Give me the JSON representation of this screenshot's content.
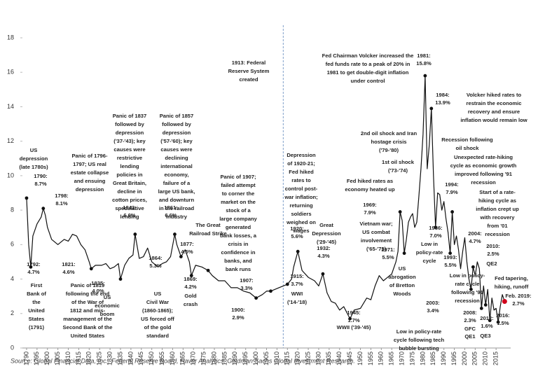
{
  "chart_data": {
    "type": "line",
    "color": "#111111",
    "point_color": "#111111",
    "xlim": [
      1788,
      2022
    ],
    "ylim": [
      0,
      18
    ],
    "xticks": [
      1790,
      1795,
      1800,
      1805,
      1810,
      1815,
      1820,
      1825,
      1830,
      1835,
      1840,
      1845,
      1850,
      1855,
      1860,
      1865,
      1870,
      1875,
      1880,
      1885,
      1890,
      1895,
      1900,
      1905,
      1910,
      1915,
      1920,
      1925,
      1930,
      1935,
      1940,
      1945,
      1950,
      1955,
      1960,
      1965,
      1970,
      1975,
      1980,
      1985,
      1990,
      1995,
      2000,
      2005,
      2010,
      2015
    ],
    "yticks": [
      0,
      2,
      4,
      6,
      8,
      10,
      12,
      14,
      16,
      18
    ],
    "vline": 1913,
    "vline_color": "#7f9fc9",
    "x": [
      1790,
      1791,
      1792,
      1793,
      1795,
      1797,
      1798,
      1799,
      1800,
      1802,
      1805,
      1808,
      1810,
      1812,
      1814,
      1816,
      1818,
      1820,
      1821,
      1823,
      1826,
      1828,
      1830,
      1832,
      1834,
      1835,
      1837,
      1839,
      1841,
      1842,
      1844,
      1846,
      1848,
      1850,
      1853,
      1855,
      1857,
      1859,
      1861,
      1862,
      1864,
      1866,
      1868,
      1869,
      1871,
      1874,
      1877,
      1879,
      1882,
      1885,
      1888,
      1891,
      1894,
      1897,
      1900,
      1903,
      1905,
      1907,
      1909,
      1911,
      1913,
      1915,
      1917,
      1918,
      1920,
      1922,
      1925,
      1928,
      1930,
      1932,
      1934,
      1936,
      1938,
      1940,
      1942,
      1945,
      1947,
      1950,
      1953,
      1955,
      1957,
      1959,
      1961,
      1963,
      1965,
      1967,
      1968,
      1969,
      1970,
      1971,
      1972,
      1973,
      1974,
      1975,
      1976,
      1977,
      1978,
      1979,
      1980,
      1981,
      1982,
      1983,
      1984,
      1985,
      1986,
      1987,
      1988,
      1989,
      1990,
      1991,
      1992,
      1993,
      1994,
      1995,
      1996,
      1997,
      1998,
      1999,
      2000,
      2001,
      2002,
      2003,
      2004,
      2005,
      2006,
      2007,
      2008,
      2009,
      2010,
      2011,
      2012,
      2013,
      2014,
      2015,
      2016,
      2017,
      2018,
      2019.1
    ],
    "values": [
      8.7,
      6.0,
      4.7,
      6.5,
      7.2,
      7.6,
      8.1,
      7.7,
      7.0,
      6.3,
      6.0,
      6.3,
      6.2,
      6.6,
      6.5,
      6.0,
      5.7,
      5.0,
      4.6,
      4.8,
      4.8,
      4.9,
      4.6,
      4.7,
      4.9,
      4.0,
      4.8,
      5.2,
      5.4,
      6.6,
      5.2,
      5.3,
      5.8,
      5.0,
      4.7,
      4.9,
      5.0,
      5.3,
      6.6,
      6.0,
      5.3,
      5.7,
      5.0,
      4.2,
      4.8,
      4.7,
      4.5,
      4.2,
      3.9,
      3.9,
      3.5,
      3.5,
      3.3,
      3.2,
      2.9,
      3.1,
      3.3,
      3.3,
      3.4,
      3.5,
      3.6,
      3.7,
      4.0,
      4.7,
      5.6,
      4.5,
      4.1,
      3.9,
      3.6,
      4.3,
      3.2,
      2.7,
      2.6,
      2.2,
      2.4,
      1.7,
      2.2,
      2.3,
      2.9,
      2.8,
      3.6,
      4.2,
      3.9,
      4.1,
      4.3,
      5.0,
      5.6,
      7.9,
      7.4,
      5.5,
      6.3,
      7.3,
      7.6,
      7.8,
      7.0,
      7.3,
      8.8,
      10.4,
      12.4,
      15.8,
      10.4,
      11.8,
      13.9,
      10.0,
      7.0,
      9.0,
      8.9,
      8.0,
      8.5,
      7.5,
      6.7,
      5.5,
      7.9,
      6.0,
      6.5,
      5.7,
      4.6,
      5.6,
      6.4,
      5.0,
      4.0,
      3.4,
      4.7,
      4.2,
      5.0,
      4.6,
      2.3,
      3.6,
      2.5,
      3.4,
      1.6,
      2.9,
      2.2,
      2.3,
      1.5,
      2.4,
      3.1,
      2.7
    ],
    "points": [
      {
        "x": 1790,
        "y": 8.7,
        "label": [
          "1790:",
          "8.7%"
        ]
      },
      {
        "x": 1792,
        "y": 4.7,
        "label": [
          "1792:",
          "4.7%"
        ]
      },
      {
        "x": 1798,
        "y": 8.1,
        "label": [
          "1798:",
          "8.1%"
        ]
      },
      {
        "x": 1821,
        "y": 4.6,
        "label": [
          "1821:",
          "4.6%"
        ]
      },
      {
        "x": 1835,
        "y": 4.0,
        "label": [
          "1835:",
          "4.0%"
        ]
      },
      {
        "x": 1842,
        "y": 6.6,
        "label": [
          "1842:",
          "6.6%"
        ]
      },
      {
        "x": 1861,
        "y": 6.6,
        "label": [
          "1861:",
          "6.6%"
        ]
      },
      {
        "x": 1864,
        "y": 5.3,
        "label": [
          "1864:",
          "5.3%"
        ]
      },
      {
        "x": 1869,
        "y": 4.2,
        "label": [
          "1869:",
          "4.2%"
        ]
      },
      {
        "x": 1877,
        "y": 4.5,
        "label": [
          "1877:",
          "4.5%"
        ]
      },
      {
        "x": 1900,
        "y": 2.9,
        "label": [
          "1900:",
          "2.9%"
        ]
      },
      {
        "x": 1907,
        "y": 3.3,
        "label": [
          "1907:",
          "3.3%"
        ]
      },
      {
        "x": 1915,
        "y": 3.7,
        "label": [
          "1915:",
          "3.7%"
        ]
      },
      {
        "x": 1920,
        "y": 5.6,
        "label": [
          "1920:",
          "5.6%"
        ]
      },
      {
        "x": 1932,
        "y": 4.3,
        "label": [
          "1932:",
          "4.3%"
        ]
      },
      {
        "x": 1945,
        "y": 1.7,
        "label": [
          "1945:",
          "1.7%"
        ]
      },
      {
        "x": 1969,
        "y": 7.9,
        "label": [
          "1969:",
          "7.9%"
        ]
      },
      {
        "x": 1971,
        "y": 5.5,
        "label": [
          "1971:",
          "5.5%"
        ]
      },
      {
        "x": 1981,
        "y": 15.8,
        "label": [
          "1981:",
          "15.8%"
        ]
      },
      {
        "x": 1984,
        "y": 13.9,
        "label": [
          "1984:",
          "13.9%"
        ]
      },
      {
        "x": 1986,
        "y": 7.0,
        "label": [
          "1986:",
          "7.0%"
        ]
      },
      {
        "x": 1993,
        "y": 5.5,
        "label": [
          "1993:",
          "5.5%"
        ]
      },
      {
        "x": 1994,
        "y": 7.9,
        "label": [
          "1994:",
          "7.9%"
        ]
      },
      {
        "x": 2003,
        "y": 3.4,
        "label": [
          "2003:",
          "3.4%"
        ]
      },
      {
        "x": 2004,
        "y": 4.7,
        "label": [
          "2004:",
          "4.7%"
        ]
      },
      {
        "x": 2008,
        "y": 2.3,
        "label": [
          "2008:",
          "2.3%"
        ]
      },
      {
        "x": 2010,
        "y": 2.5,
        "label": [
          "2010:",
          "2.5%"
        ]
      },
      {
        "x": 2012,
        "y": 1.6,
        "label": [
          "2012:",
          "1.6%"
        ]
      },
      {
        "x": 2016,
        "y": 1.5,
        "label": [
          "2016:",
          "1.5%"
        ]
      },
      {
        "x": 2019.1,
        "y": 2.7,
        "label": [
          "Feb. 2019:",
          "2.7%"
        ],
        "color": "#d0021b"
      }
    ],
    "notes": [
      [
        "US",
        "depression",
        "(late 1780s)"
      ],
      [
        "First",
        "Bank of",
        "the",
        "United",
        "States",
        "(1791)"
      ],
      [
        "Panic of 1796-",
        "1797; US real",
        "estate collapse",
        "and ensuing",
        "depression"
      ],
      [
        "Panic of 1819",
        "following the end",
        "of the War of",
        "1812 and mis-",
        "management of the",
        "Second Bank of the",
        "United States"
      ],
      [
        "US",
        "economic",
        "boom"
      ],
      [
        "Panic of 1837",
        "followed by",
        "depression",
        "('37-'43); key",
        "causes were",
        "restrictive",
        "lending",
        "policies in",
        "Great Britain,",
        "decline in",
        "cotton prices,",
        "speculative",
        "lending"
      ],
      [
        "Panic of 1857",
        "followed by",
        "depression",
        "('57-'60); key",
        "causes were",
        "declining",
        "international",
        "economy,",
        "failure of a",
        "large US bank,",
        "and downturn",
        "in the railroad",
        "industry"
      ],
      [
        "US",
        "Civil War",
        "(1860-1865);",
        "US forced off",
        "of the gold",
        "standard"
      ],
      [
        "Gold",
        "crash"
      ],
      [
        "The Great",
        "Railroad Strike"
      ],
      [
        "Panic of 1907;",
        "failed attempt",
        "to corner the",
        "market on the",
        "stock of a",
        "large company",
        "generated",
        "bank losses, a",
        "crisis in",
        "confidence in",
        "banks, and",
        "bank runs"
      ],
      [
        "1913: Federal",
        "Reserve System",
        "created"
      ],
      [
        "Depression",
        "of 1920-21;",
        "Fed hiked",
        "rates to",
        "control post-",
        "war inflation;",
        "returning",
        "soldiers",
        "weighed on",
        "wages"
      ],
      [
        "Great",
        "Depression",
        "('29-'45)"
      ],
      [
        "WWI",
        "('14-'18)"
      ],
      [
        "WWII ('39-'45)"
      ],
      [
        "Fed hiked rates as",
        "economy heated up"
      ],
      [
        "Vietnam war;",
        "US combat",
        "involvement",
        "('65-'73)"
      ],
      [
        "US",
        "abrogation",
        "of Bretton",
        "Woods"
      ],
      [
        "2nd oil shock and Iran",
        "hostage crisis",
        "('79-'80)"
      ],
      [
        "1st oil shock",
        "('73-'74)"
      ],
      [
        "Fed Chairman Volcker increased the",
        "fed funds rate to a peak of 20% in",
        "1981 to get double-digit inflation",
        "under control"
      ],
      [
        "Volcker hiked rates to",
        "restrain the economic",
        "recovery and ensure",
        "inflation would remain low"
      ],
      [
        "Recession following",
        "oil shock"
      ],
      [
        "Low in",
        "policy-rate",
        "cycle"
      ],
      [
        "Unexpected rate-hiking",
        "cycle as economic growth",
        "improved following '91",
        "recession"
      ],
      [
        "Start of a rate-",
        "hiking cycle as",
        "inflation crept up",
        "with recovery",
        "from '01",
        "recession"
      ],
      [
        "Low in policy-",
        "rate cycle",
        "following '91",
        "recession"
      ],
      [
        "Fed tapering,",
        "hiking, runoff"
      ],
      [
        "Low in policy-rate",
        "cycle following tech",
        "bubble bursting"
      ],
      [
        "GFC"
      ],
      [
        "QE1"
      ],
      [
        "QE2"
      ],
      [
        "QE3"
      ]
    ],
    "source": "Source: Global Financial Data, Inc., Federal Reserve Board, Haver Analytics, Goldman Sachs Global Investment Research."
  }
}
